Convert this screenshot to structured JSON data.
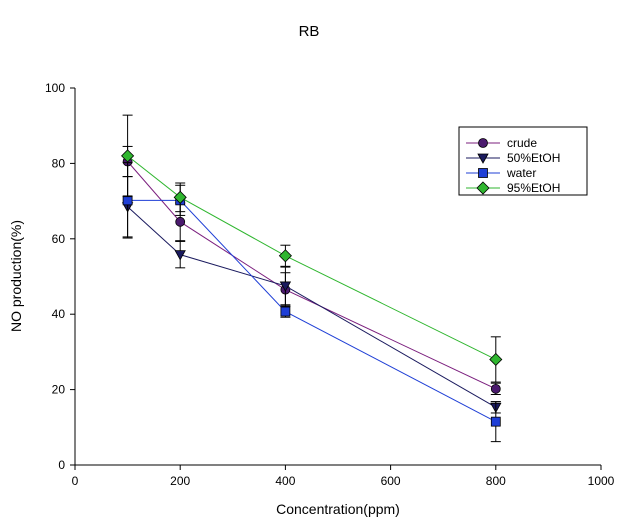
{
  "chart_data": {
    "type": "line",
    "title": "RB",
    "xlabel": "Concentration(ppm)",
    "ylabel": "NO production(%)",
    "xlim": [
      0,
      1000
    ],
    "ylim": [
      0,
      100
    ],
    "xticks": [
      0,
      200,
      400,
      600,
      800,
      1000
    ],
    "yticks": [
      0,
      20,
      40,
      60,
      80,
      100
    ],
    "grid": false,
    "legend_position": "top-right",
    "series": [
      {
        "name": "crude",
        "marker": "circle",
        "color": "#7B1F7E",
        "fill": "#4B1A6E",
        "x": [
          100,
          200,
          400,
          800
        ],
        "y": [
          80.5,
          64.5,
          46.5,
          20.2
        ],
        "err": [
          4.0,
          5.0,
          4.5,
          1.5
        ]
      },
      {
        "name": "50%EtOH",
        "marker": "triangle-down",
        "color": "#1A1A5E",
        "fill": "#1A1A5E",
        "x": [
          100,
          200,
          400,
          800
        ],
        "y": [
          68.5,
          55.8,
          47.5,
          15.3
        ],
        "err": [
          8.0,
          3.5,
          5.0,
          1.5
        ]
      },
      {
        "name": "water",
        "marker": "square",
        "color": "#1F3FD6",
        "fill": "#1F3FD6",
        "x": [
          100,
          200,
          400,
          800
        ],
        "y": [
          70.2,
          70.2,
          40.7,
          11.5
        ],
        "err": [
          10.0,
          4.0,
          1.5,
          5.3
        ]
      },
      {
        "name": "95%EtOH",
        "marker": "diamond",
        "color": "#2FB62F",
        "fill": "#2FB62F",
        "x": [
          100,
          200,
          400,
          800
        ],
        "y": [
          82.0,
          71.0,
          55.5,
          28.0
        ],
        "err": [
          10.8,
          3.8,
          2.8,
          6.0
        ]
      }
    ]
  }
}
